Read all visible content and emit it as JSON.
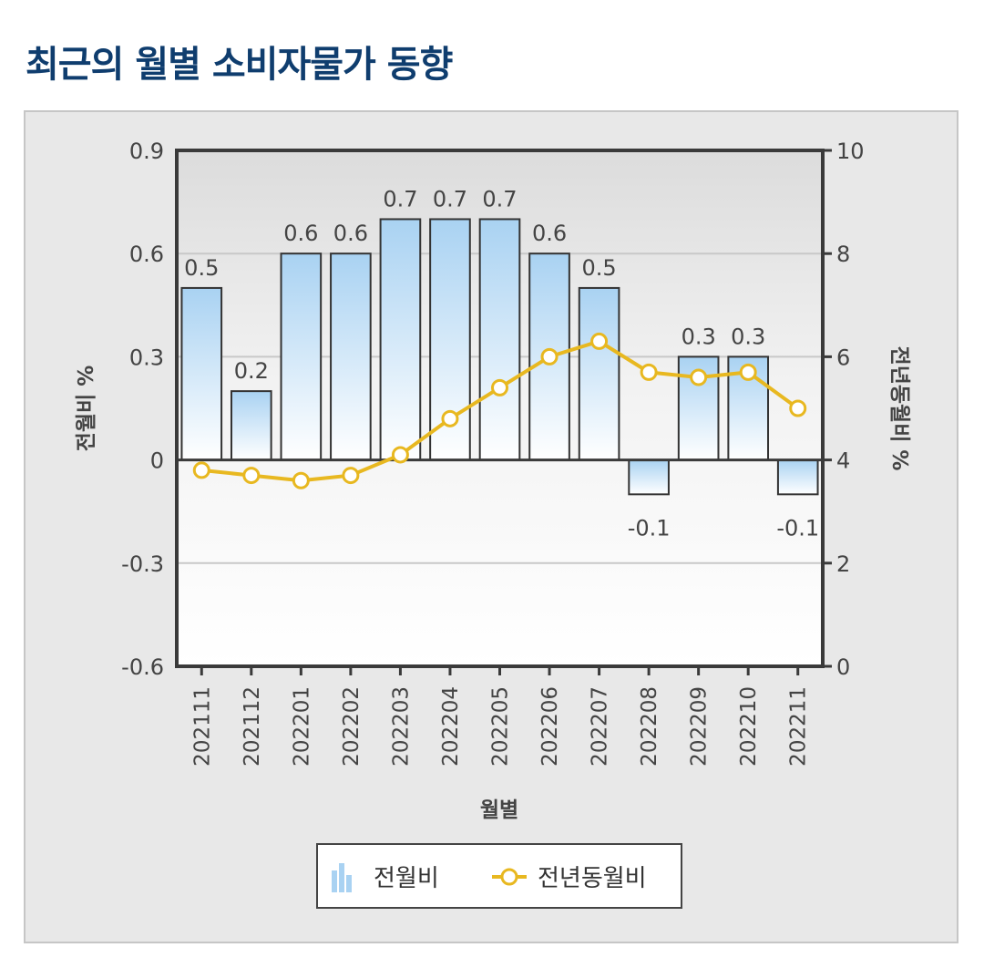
{
  "page": {
    "title": "최근의 월별 소비자물가 동향"
  },
  "colors": {
    "title": "#0f3d6e",
    "bar_top": "#a9d2f2",
    "bar_bottom": "#ffffff",
    "bar_stroke": "#333333",
    "line": "#e8b820",
    "marker_fill": "#ffffff",
    "frame_bg": "#e8e8e8",
    "plot_border": "#3a3a3a"
  },
  "chart_data": {
    "type": "bar",
    "categories": [
      "202111",
      "202112",
      "202201",
      "202202",
      "202203",
      "202204",
      "202205",
      "202206",
      "202207",
      "202208",
      "202209",
      "202210",
      "202211"
    ],
    "series": [
      {
        "name": "전월비",
        "type": "bar",
        "axis": "left",
        "values": [
          0.5,
          0.2,
          0.6,
          0.6,
          0.7,
          0.7,
          0.7,
          0.6,
          0.5,
          -0.1,
          0.3,
          0.3,
          -0.1
        ],
        "labels": [
          "0.5",
          "0.2",
          "0.6",
          "0.6",
          "0.7",
          "0.7",
          "0.7",
          "0.6",
          "0.5",
          "-0.1",
          "0.3",
          "0.3",
          "-0.1"
        ]
      },
      {
        "name": "전년동월비",
        "type": "line",
        "axis": "right",
        "values": [
          3.8,
          3.7,
          3.6,
          3.7,
          4.1,
          4.8,
          5.4,
          6.0,
          6.3,
          5.7,
          5.6,
          5.7,
          5.0
        ]
      }
    ],
    "xlabel": "월별",
    "ylabel": "전월비 %",
    "y2label": "전년동월비 %",
    "ylim": [
      -0.6,
      0.9
    ],
    "y2lim": [
      0,
      10
    ],
    "yticks": [
      0.9,
      0.6,
      0.3,
      0,
      -0.3,
      -0.6
    ],
    "ytick_labels": [
      "0.9",
      "0.6",
      "0.3",
      "0",
      "-0.3",
      "-0.6"
    ],
    "y2ticks": [
      10,
      8,
      6,
      4,
      2,
      0
    ],
    "y2tick_labels": [
      "10",
      "8",
      "6",
      "4",
      "2",
      "0"
    ],
    "grid": true,
    "legend": {
      "position": "bottom-center",
      "items": [
        {
          "label": "전월비",
          "icon": "bar-chart-icon"
        },
        {
          "label": "전년동월비",
          "icon": "line-marker-icon"
        }
      ]
    }
  }
}
